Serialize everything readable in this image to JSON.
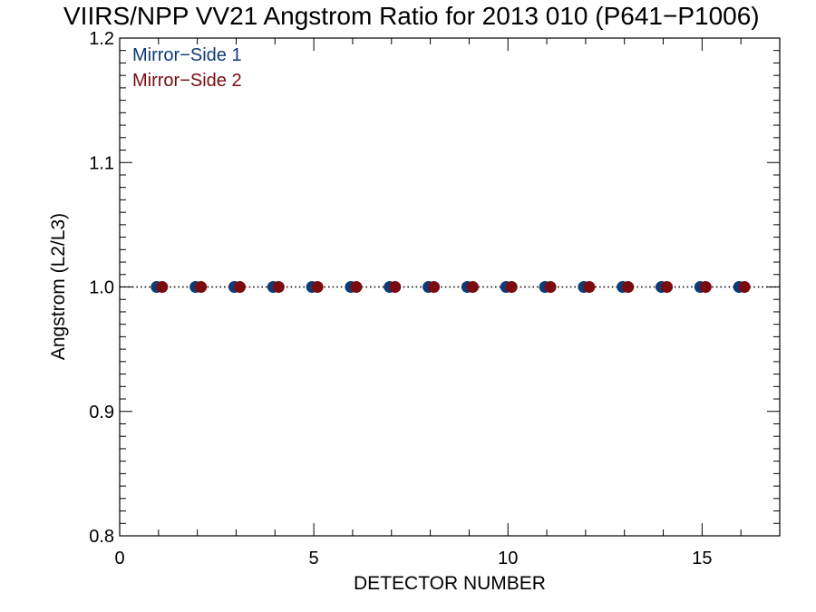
{
  "chart_data": {
    "type": "scatter",
    "title": "VIIRS/NPP VV21 Angstrom Ratio for 2013 010 (P641−P1006)",
    "xlabel": "DETECTOR NUMBER",
    "ylabel": "Angstrom (L2/L3)",
    "xlim": [
      0,
      17
    ],
    "ylim": [
      0.8,
      1.2
    ],
    "xticks": [
      0,
      5,
      10,
      15
    ],
    "xtick_labels": [
      "0",
      "5",
      "10",
      "15"
    ],
    "yticks": [
      0.8,
      0.9,
      1.0,
      1.1,
      1.2
    ],
    "ytick_labels": [
      "0.8",
      "0.9",
      "1.0",
      "1.1",
      "1.2"
    ],
    "reference_line": 1.0,
    "legend_position": "top-left",
    "series": [
      {
        "name": "Mirror−Side 1",
        "color": "#0f3a78",
        "x": [
          1,
          2,
          3,
          4,
          5,
          6,
          7,
          8,
          9,
          10,
          11,
          12,
          13,
          14,
          15,
          16
        ],
        "y": [
          1.0,
          1.0,
          1.0,
          1.0,
          1.0,
          1.0,
          1.0,
          1.0,
          1.0,
          1.0,
          1.0,
          1.0,
          1.0,
          1.0,
          1.0,
          1.0
        ]
      },
      {
        "name": "Mirror−Side 2",
        "color": "#7a0c10",
        "x": [
          1,
          2,
          3,
          4,
          5,
          6,
          7,
          8,
          9,
          10,
          11,
          12,
          13,
          14,
          15,
          16
        ],
        "y": [
          1.0,
          1.0,
          1.0,
          1.0,
          1.0,
          1.0,
          1.0,
          1.0,
          1.0,
          1.0,
          1.0,
          1.0,
          1.0,
          1.0,
          1.0,
          1.0
        ]
      }
    ]
  }
}
